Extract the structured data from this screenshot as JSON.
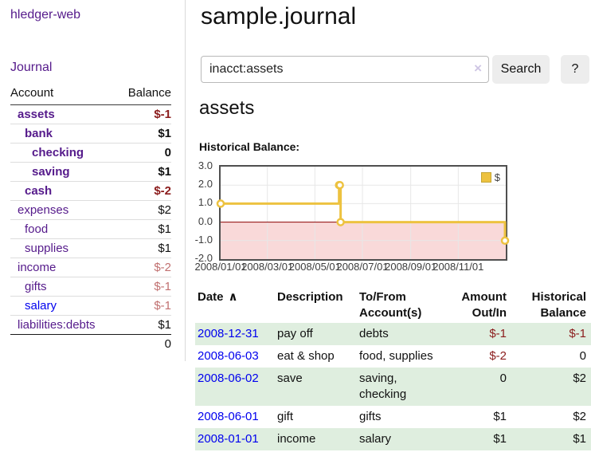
{
  "app": {
    "brand": "hledger-web"
  },
  "sidebar": {
    "journal_link": "Journal",
    "accounts": {
      "col_account": "Account",
      "col_balance": "Balance",
      "rows": [
        {
          "name": "assets",
          "balance": "$-1",
          "indent": 1,
          "current": true,
          "amount_class": "neg",
          "link_class": "purple"
        },
        {
          "name": "bank",
          "balance": "$1",
          "indent": 2,
          "current": true,
          "amount_class": "pos",
          "link_class": "purple"
        },
        {
          "name": "checking",
          "balance": "0",
          "indent": 3,
          "current": true,
          "amount_class": "pos",
          "link_class": "purple"
        },
        {
          "name": "saving",
          "balance": "$1",
          "indent": 3,
          "current": true,
          "amount_class": "pos",
          "link_class": "purple"
        },
        {
          "name": "cash",
          "balance": "$-2",
          "indent": 2,
          "current": true,
          "amount_class": "neg",
          "link_class": "purple"
        },
        {
          "name": "expenses",
          "balance": "$2",
          "indent": 1,
          "current": false,
          "amount_class": "pos",
          "link_class": "purple"
        },
        {
          "name": "food",
          "balance": "$1",
          "indent": 2,
          "current": false,
          "amount_class": "pos",
          "link_class": "purple"
        },
        {
          "name": "supplies",
          "balance": "$1",
          "indent": 2,
          "current": false,
          "amount_class": "pos",
          "link_class": "purple"
        },
        {
          "name": "income",
          "balance": "$-2",
          "indent": 1,
          "current": false,
          "amount_class": "negsoft",
          "link_class": "purple"
        },
        {
          "name": "gifts",
          "balance": "$-1",
          "indent": 2,
          "current": false,
          "amount_class": "negsoft",
          "link_class": "purple"
        },
        {
          "name": "salary",
          "balance": "$-1",
          "indent": 2,
          "current": false,
          "amount_class": "negsoft",
          "link_class": "blue"
        },
        {
          "name": "liabilities:debts",
          "balance": "$1",
          "indent": 1,
          "current": false,
          "amount_class": "pos",
          "link_class": "purple"
        }
      ],
      "total": "0"
    }
  },
  "main": {
    "title": "sample.journal",
    "search": {
      "value": "inacct:assets",
      "clear_icon": "×",
      "search_button": "Search",
      "help_button": "?"
    },
    "heading": "assets",
    "chart_label": "Historical Balance:",
    "register": {
      "headers": [
        {
          "line1": "Date",
          "line2": "",
          "sort_icon": "∧"
        },
        {
          "line1": "Description",
          "line2": ""
        },
        {
          "line1": "To/From",
          "line2": "Account(s)"
        },
        {
          "line1": "Amount",
          "line2": "Out/In",
          "align": "right"
        },
        {
          "line1": "Historical",
          "line2": "Balance",
          "align": "right"
        }
      ],
      "rows": [
        {
          "date": "2008-12-31",
          "description": "pay off",
          "accounts": "debts",
          "amount": "$-1",
          "amount_class": "neg",
          "balance": "$-1",
          "balance_class": "neg",
          "shaded": true
        },
        {
          "date": "2008-06-03",
          "description": "eat & shop",
          "accounts": "food, supplies",
          "amount": "$-2",
          "amount_class": "neg",
          "balance": "0",
          "balance_class": "pos",
          "shaded": false
        },
        {
          "date": "2008-06-02",
          "description": "save",
          "accounts": "saving, checking",
          "amount": "0",
          "amount_class": "pos",
          "balance": "$2",
          "balance_class": "pos",
          "shaded": true
        },
        {
          "date": "2008-06-01",
          "description": "gift",
          "accounts": "gifts",
          "amount": "$1",
          "amount_class": "pos",
          "balance": "$2",
          "balance_class": "pos",
          "shaded": false
        },
        {
          "date": "2008-01-01",
          "description": "income",
          "accounts": "salary",
          "amount": "$1",
          "amount_class": "pos",
          "balance": "$1",
          "balance_class": "pos",
          "shaded": true
        }
      ]
    }
  },
  "chart_data": {
    "type": "line",
    "step": true,
    "title": "Historical Balance:",
    "series": [
      {
        "name": "$",
        "points": [
          [
            "2008-01-01",
            1
          ],
          [
            "2008-06-01",
            2
          ],
          [
            "2008-06-02",
            2
          ],
          [
            "2008-06-03",
            0
          ],
          [
            "2008-12-31",
            -1
          ]
        ]
      }
    ],
    "x_range": [
      "2008-01-01",
      "2009-01-01"
    ],
    "ylim": [
      -2,
      3
    ],
    "yticks": [
      {
        "v": 3,
        "label": "3.0"
      },
      {
        "v": 2,
        "label": "2.0"
      },
      {
        "v": 1,
        "label": "1.0"
      },
      {
        "v": 0,
        "label": "0.0"
      },
      {
        "v": -1,
        "label": "-1.0"
      },
      {
        "v": -2,
        "label": "-2.0"
      }
    ],
    "xticks": [
      {
        "date": "2008-01-01",
        "label": "2008/01/01"
      },
      {
        "date": "2008-03-01",
        "label": "2008/03/01"
      },
      {
        "date": "2008-05-01",
        "label": "2008/05/01"
      },
      {
        "date": "2008-07-01",
        "label": "2008/07/01"
      },
      {
        "date": "2008-09-01",
        "label": "2008/09/01"
      },
      {
        "date": "2008-11-01",
        "label": "2008/11/01"
      }
    ],
    "legend": {
      "label": "$",
      "position": "top-right"
    },
    "colors": {
      "line": "#edc240",
      "marker_fill": "#ffffff",
      "negative_region": "#f9d9d9",
      "zero_line": "#8b0000",
      "grid": "#e7e7e7",
      "plot_border": "#4f4f4f"
    }
  }
}
